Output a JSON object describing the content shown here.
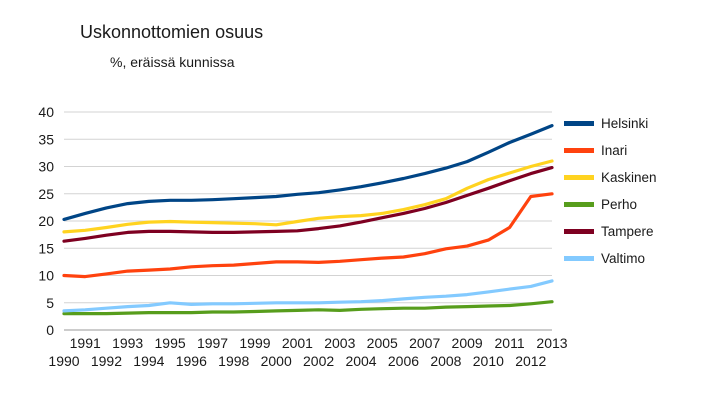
{
  "chart_data": {
    "type": "line",
    "title": "Uskonnottomien osuus",
    "subtitle": "%, eräissä kunnissa",
    "x": [
      1990,
      1991,
      1992,
      1993,
      1994,
      1995,
      1996,
      1997,
      1998,
      1999,
      2000,
      2001,
      2002,
      2003,
      2004,
      2005,
      2006,
      2007,
      2008,
      2009,
      2010,
      2011,
      2012,
      2013
    ],
    "xlabel": "",
    "ylabel": "",
    "ylim": [
      0,
      40
    ],
    "ytick_step": 5,
    "grid": "horizontal",
    "legend_position": "right",
    "series": [
      {
        "name": "Helsinki",
        "color": "#004586",
        "values": [
          20.3,
          21.4,
          22.4,
          23.2,
          23.6,
          23.8,
          23.8,
          23.9,
          24.1,
          24.3,
          24.5,
          24.9,
          25.2,
          25.7,
          26.3,
          27.0,
          27.8,
          28.7,
          29.7,
          30.9,
          32.6,
          34.4,
          35.9,
          37.5
        ]
      },
      {
        "name": "Inari",
        "color": "#FF420E",
        "values": [
          10.0,
          9.8,
          10.3,
          10.8,
          11.0,
          11.2,
          11.6,
          11.8,
          11.9,
          12.2,
          12.5,
          12.5,
          12.4,
          12.6,
          12.9,
          13.2,
          13.4,
          14.0,
          14.9,
          15.4,
          16.5,
          18.8,
          24.5,
          25.0
        ]
      },
      {
        "name": "Kaskinen",
        "color": "#FFD320",
        "values": [
          18.0,
          18.3,
          18.8,
          19.4,
          19.8,
          19.9,
          19.8,
          19.7,
          19.6,
          19.5,
          19.3,
          19.9,
          20.5,
          20.8,
          21.0,
          21.4,
          22.1,
          23.0,
          24.1,
          26.0,
          27.6,
          28.8,
          30.0,
          31.0
        ]
      },
      {
        "name": "Perho",
        "color": "#579D1C",
        "values": [
          3.0,
          3.0,
          3.0,
          3.1,
          3.2,
          3.2,
          3.2,
          3.3,
          3.3,
          3.4,
          3.5,
          3.6,
          3.7,
          3.6,
          3.8,
          3.9,
          4.0,
          4.0,
          4.2,
          4.3,
          4.4,
          4.5,
          4.8,
          5.2
        ]
      },
      {
        "name": "Tampere",
        "color": "#7E0021",
        "values": [
          16.3,
          16.8,
          17.4,
          17.9,
          18.1,
          18.1,
          18.0,
          17.9,
          17.9,
          18.0,
          18.1,
          18.2,
          18.6,
          19.1,
          19.8,
          20.6,
          21.4,
          22.3,
          23.4,
          24.7,
          26.0,
          27.4,
          28.7,
          29.8
        ]
      },
      {
        "name": "Valtimo",
        "color": "#83CAFF",
        "values": [
          3.5,
          3.7,
          4.0,
          4.3,
          4.5,
          5.0,
          4.7,
          4.8,
          4.8,
          4.9,
          5.0,
          5.0,
          5.0,
          5.1,
          5.2,
          5.4,
          5.7,
          6.0,
          6.2,
          6.5,
          7.0,
          7.5,
          8.0,
          9.0
        ]
      }
    ]
  }
}
